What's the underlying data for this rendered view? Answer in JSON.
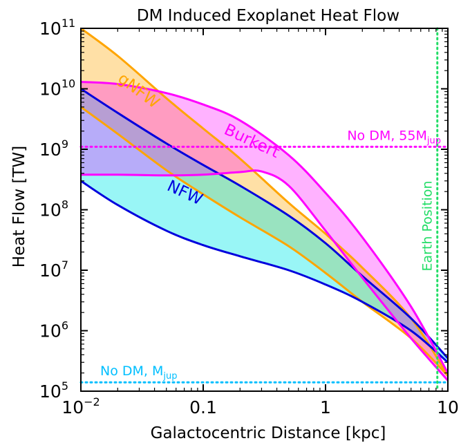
{
  "chart_data": {
    "type": "area",
    "title": "DM Induced Exoplanet Heat Flow",
    "xlabel": "Galactocentric Distance [kpc]",
    "ylabel": "Heat Flow [TW]",
    "xscale": "log",
    "yscale": "log",
    "xlim": [
      0.01,
      10
    ],
    "ylim": [
      100000,
      100000000000
    ],
    "grid": false,
    "x_ticks": [
      {
        "value": 0.01,
        "base": "10",
        "exp": "−2"
      },
      {
        "value": 0.1,
        "base": "0.1",
        "exp": ""
      },
      {
        "value": 1,
        "base": "1",
        "exp": ""
      },
      {
        "value": 10,
        "base": "10",
        "exp": ""
      }
    ],
    "y_ticks": [
      {
        "value": 100000,
        "base": "10",
        "exp": "5"
      },
      {
        "value": 1000000,
        "base": "10",
        "exp": "6"
      },
      {
        "value": 10000000,
        "base": "10",
        "exp": "7"
      },
      {
        "value": 100000000,
        "base": "10",
        "exp": "8"
      },
      {
        "value": 1000000000,
        "base": "10",
        "exp": "9"
      },
      {
        "value": 10000000000,
        "base": "10",
        "exp": "10"
      },
      {
        "value": 100000000000,
        "base": "10",
        "exp": "11"
      }
    ],
    "bands": [
      {
        "name": "gNFW",
        "color": "#ffa500",
        "fill": "#ffa500",
        "fill_opacity": 0.35,
        "label_pos": [
          0.028,
          8000000000.0
        ],
        "label_rotation": 37,
        "upper": [
          [
            0.01,
            100000000000.0
          ],
          [
            0.02,
            35000000000.0
          ],
          [
            0.05,
            7000000000.0
          ],
          [
            0.1,
            2200000000.0
          ],
          [
            0.2,
            700000000.0
          ],
          [
            0.5,
            130000000.0
          ],
          [
            1,
            40000000.0
          ],
          [
            2,
            11000000.0
          ],
          [
            5,
            1600000.0
          ],
          [
            10,
            180000.0
          ]
        ],
        "lower": [
          [
            0.01,
            5000000000.0
          ],
          [
            0.02,
            1800000000.0
          ],
          [
            0.05,
            450000000.0
          ],
          [
            0.1,
            180000000.0
          ],
          [
            0.2,
            75000000.0
          ],
          [
            0.5,
            25000000.0
          ],
          [
            1,
            9000000.0
          ],
          [
            2,
            3000000.0
          ],
          [
            5,
            750000.0
          ],
          [
            10,
            180000.0
          ]
        ]
      },
      {
        "name": "NFW",
        "color": "#0000dd",
        "fill": "#00e8e8",
        "fill_opacity": 0.4,
        "label_pos": [
          0.068,
          160000000.0
        ],
        "label_rotation": 25,
        "upper": [
          [
            0.01,
            10000000000.0
          ],
          [
            0.02,
            4000000000.0
          ],
          [
            0.05,
            1250000000.0
          ],
          [
            0.1,
            550000000.0
          ],
          [
            0.2,
            250000000.0
          ],
          [
            0.5,
            80000000.0
          ],
          [
            1,
            28000000.0
          ],
          [
            2,
            8000000.0
          ],
          [
            5,
            1600000.0
          ],
          [
            10,
            350000.0
          ]
        ],
        "lower": [
          [
            0.01,
            300000000.0
          ],
          [
            0.02,
            120000000.0
          ],
          [
            0.05,
            45000000.0
          ],
          [
            0.1,
            26000000.0
          ],
          [
            0.2,
            17000000.0
          ],
          [
            0.5,
            10000000.0
          ],
          [
            1,
            5800000.0
          ],
          [
            2,
            3000000.0
          ],
          [
            5,
            1000000.0
          ],
          [
            10,
            300000.0
          ]
        ]
      },
      {
        "name": "Burkert",
        "color": "#ff00ff",
        "fill": "#ff00ff",
        "fill_opacity": 0.3,
        "label_pos": [
          0.24,
          1150000000.0
        ],
        "label_rotation": 25,
        "upper": [
          [
            0.01,
            13000000000.0
          ],
          [
            0.02,
            12000000000.0
          ],
          [
            0.05,
            8500000000.0
          ],
          [
            0.1,
            5500000000.0
          ],
          [
            0.2,
            3000000000.0
          ],
          [
            0.5,
            800000000.0
          ],
          [
            1,
            190000000.0
          ],
          [
            2,
            35000000.0
          ],
          [
            5,
            2500000.0
          ],
          [
            10,
            200000.0
          ]
        ],
        "lower": [
          [
            0.01,
            380000000.0
          ],
          [
            0.02,
            380000000.0
          ],
          [
            0.05,
            370000000.0
          ],
          [
            0.1,
            380000000.0
          ],
          [
            0.2,
            420000000.0
          ],
          [
            0.3,
            430000000.0
          ],
          [
            0.5,
            250000000.0
          ],
          [
            1,
            45000000.0
          ],
          [
            2,
            7500000.0
          ],
          [
            5,
            750000.0
          ],
          [
            10,
            150000.0
          ]
        ]
      }
    ],
    "reference_lines": [
      {
        "orientation": "horizontal",
        "value": 1100000000.0,
        "color": "#ff00ff",
        "style": "dotted",
        "label": "No DM, 55M",
        "label_sub": "jup"
      },
      {
        "orientation": "horizontal",
        "value": 140000.0,
        "color": "#00bfff",
        "style": "dotted",
        "label": "No DM, M",
        "label_sub": "jup"
      },
      {
        "orientation": "vertical",
        "value": 8.2,
        "color": "#22dd66",
        "style": "dotted",
        "label": "Earth Position"
      }
    ]
  }
}
